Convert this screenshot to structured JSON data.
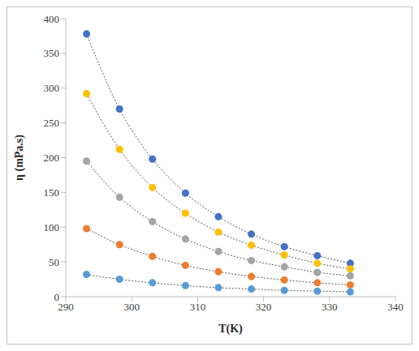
{
  "chart_data": {
    "type": "scatter",
    "x_label": "T(K)",
    "y_label": "η (mPa.s)",
    "x": [
      293.15,
      298.15,
      303.15,
      308.15,
      313.15,
      318.15,
      323.15,
      328.15,
      333.15
    ],
    "xlim": [
      290,
      340
    ],
    "xticks": [
      290,
      300,
      310,
      320,
      330,
      340
    ],
    "ylim": [
      0,
      400
    ],
    "yticks": [
      0,
      50,
      100,
      150,
      200,
      250,
      300,
      350,
      400
    ],
    "grid": false,
    "series": [
      {
        "color": "#4472c4",
        "marker": "circle",
        "line_style": "dotted",
        "values": [
          378,
          270,
          198,
          149,
          115,
          90,
          72,
          59,
          48
        ]
      },
      {
        "color": "#ffc000",
        "marker": "circle",
        "line_style": "dotted",
        "values": [
          292,
          212,
          157,
          120,
          93,
          74,
          60,
          48,
          40
        ]
      },
      {
        "color": "#a5a5a5",
        "marker": "circle",
        "line_style": "dotted",
        "values": [
          195,
          143,
          108,
          83,
          65,
          52,
          43,
          35,
          30
        ]
      },
      {
        "color": "#ed7d31",
        "marker": "circle",
        "line_style": "dotted",
        "values": [
          98,
          75,
          58,
          45,
          36,
          29,
          24,
          20,
          17
        ]
      },
      {
        "color": "#5b9bd5",
        "marker": "circle",
        "line_style": "dotted",
        "values": [
          32,
          25,
          20,
          16,
          13,
          11,
          9,
          8,
          7
        ]
      }
    ]
  }
}
